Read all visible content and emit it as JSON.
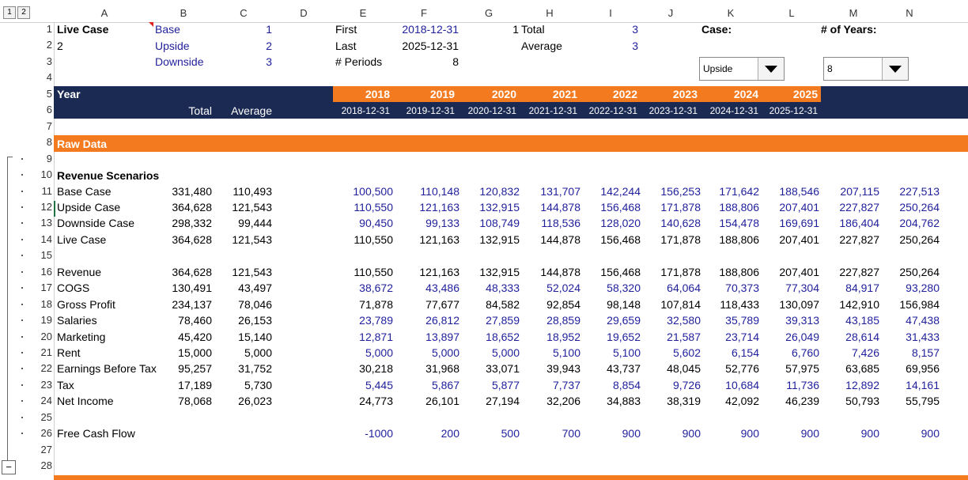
{
  "outline_levels": [
    "1",
    "2"
  ],
  "columns": [
    "A",
    "B",
    "C",
    "D",
    "E",
    "F",
    "G",
    "H",
    "I",
    "J",
    "K",
    "L",
    "M",
    "N"
  ],
  "top": {
    "a1": "Live Case",
    "a2": "2",
    "b1": "Base",
    "b2": "Upside",
    "b3": "Downside",
    "c1": "1",
    "c2": "2",
    "c3": "3",
    "e1": "First",
    "e2": "Last",
    "e3": "# Periods",
    "f1": "2018-12-31",
    "f2": "2025-12-31",
    "f3": "8",
    "g1": "1",
    "h1": "Total",
    "h2": "Average",
    "i1": "3",
    "i2": "3",
    "k1": "Case:",
    "m1": "# of Years:"
  },
  "case_dropdown": {
    "value": "Upside"
  },
  "years_dropdown": {
    "value": "8"
  },
  "header": {
    "year_label": "Year",
    "total_label": "Total",
    "average_label": "Average",
    "years": [
      "2018",
      "2019",
      "2020",
      "2021",
      "2022",
      "2023",
      "2024",
      "2025"
    ],
    "dates": [
      "2018-12-31",
      "2019-12-31",
      "2020-12-31",
      "2021-12-31",
      "2022-12-31",
      "2023-12-31",
      "2024-12-31",
      "2025-12-31"
    ]
  },
  "raw_data_label": "Raw Data",
  "revenue_scenarios_label": "Revenue Scenarios",
  "rows": [
    {
      "n": "11",
      "label": "Base Case",
      "total": "331,480",
      "avg": "110,493",
      "blue": true,
      "vals": [
        "100,500",
        "110,148",
        "120,832",
        "131,707",
        "142,244",
        "156,253",
        "171,642",
        "188,546",
        "207,115",
        "227,513"
      ]
    },
    {
      "n": "12",
      "label": "Upside Case",
      "total": "364,628",
      "avg": "121,543",
      "blue": true,
      "vals": [
        "110,550",
        "121,163",
        "132,915",
        "144,878",
        "156,468",
        "171,878",
        "188,806",
        "207,401",
        "227,827",
        "250,264"
      ]
    },
    {
      "n": "13",
      "label": "Downside Case",
      "total": "298,332",
      "avg": "99,444",
      "blue": true,
      "vals": [
        "90,450",
        "99,133",
        "108,749",
        "118,536",
        "128,020",
        "140,628",
        "154,478",
        "169,691",
        "186,404",
        "204,762"
      ]
    },
    {
      "n": "14",
      "label": "Live Case",
      "total": "364,628",
      "avg": "121,543",
      "blue": false,
      "vals": [
        "110,550",
        "121,163",
        "132,915",
        "144,878",
        "156,468",
        "171,878",
        "188,806",
        "207,401",
        "227,827",
        "250,264"
      ]
    },
    {
      "n": "16",
      "label": "Revenue",
      "total": "364,628",
      "avg": "121,543",
      "blue": false,
      "vals": [
        "110,550",
        "121,163",
        "132,915",
        "144,878",
        "156,468",
        "171,878",
        "188,806",
        "207,401",
        "227,827",
        "250,264"
      ]
    },
    {
      "n": "17",
      "label": "COGS",
      "total": "130,491",
      "avg": "43,497",
      "blue": true,
      "vals": [
        "38,672",
        "43,486",
        "48,333",
        "52,024",
        "58,320",
        "64,064",
        "70,373",
        "77,304",
        "84,917",
        "93,280"
      ]
    },
    {
      "n": "18",
      "label": "Gross Profit",
      "total": "234,137",
      "avg": "78,046",
      "blue": false,
      "vals": [
        "71,878",
        "77,677",
        "84,582",
        "92,854",
        "98,148",
        "107,814",
        "118,433",
        "130,097",
        "142,910",
        "156,984"
      ]
    },
    {
      "n": "19",
      "label": "Salaries",
      "total": "78,460",
      "avg": "26,153",
      "blue": true,
      "vals": [
        "23,789",
        "26,812",
        "27,859",
        "28,859",
        "29,659",
        "32,580",
        "35,789",
        "39,313",
        "43,185",
        "47,438"
      ]
    },
    {
      "n": "20",
      "label": "Marketing",
      "total": "45,420",
      "avg": "15,140",
      "blue": true,
      "vals": [
        "12,871",
        "13,897",
        "18,652",
        "18,952",
        "19,652",
        "21,587",
        "23,714",
        "26,049",
        "28,614",
        "31,433"
      ]
    },
    {
      "n": "21",
      "label": "Rent",
      "total": "15,000",
      "avg": "5,000",
      "blue": true,
      "vals": [
        "5,000",
        "5,000",
        "5,000",
        "5,100",
        "5,100",
        "5,602",
        "6,154",
        "6,760",
        "7,426",
        "8,157"
      ]
    },
    {
      "n": "22",
      "label": "Earnings Before Tax",
      "total": "95,257",
      "avg": "31,752",
      "blue": false,
      "vals": [
        "30,218",
        "31,968",
        "33,071",
        "39,943",
        "43,737",
        "48,045",
        "52,776",
        "57,975",
        "63,685",
        "69,956"
      ]
    },
    {
      "n": "23",
      "label": "Tax",
      "total": "17,189",
      "avg": "5,730",
      "blue": true,
      "vals": [
        "5,445",
        "5,867",
        "5,877",
        "7,737",
        "8,854",
        "9,726",
        "10,684",
        "11,736",
        "12,892",
        "14,161"
      ]
    },
    {
      "n": "24",
      "label": "Net Income",
      "total": "78,068",
      "avg": "26,023",
      "blue": false,
      "vals": [
        "24,773",
        "26,101",
        "27,194",
        "32,206",
        "34,883",
        "38,319",
        "42,092",
        "46,239",
        "50,793",
        "55,795"
      ]
    },
    {
      "n": "26",
      "label": "Free Cash Flow",
      "total": "",
      "avg": "",
      "blue": true,
      "vals": [
        "-1000",
        "200",
        "500",
        "700",
        "900",
        "900",
        "900",
        "900",
        "900",
        "900"
      ]
    }
  ],
  "row_numbers": [
    "1",
    "2",
    "3",
    "4",
    "5",
    "6",
    "7",
    "8",
    "9",
    "10",
    "11",
    "12",
    "13",
    "14",
    "15",
    "16",
    "17",
    "18",
    "19",
    "20",
    "21",
    "22",
    "23",
    "24",
    "25",
    "26",
    "27",
    "28"
  ],
  "collapse_button": "−"
}
